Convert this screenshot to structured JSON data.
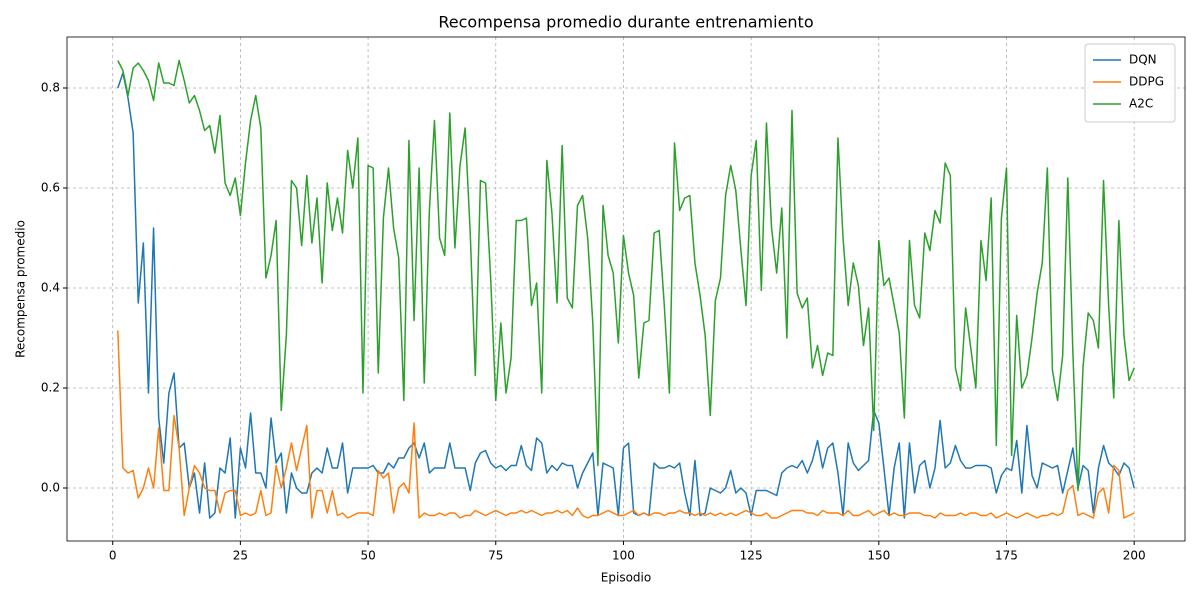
{
  "chart_data": {
    "type": "line",
    "title": "Recompensa promedio durante entrenamiento",
    "xlabel": "Episodio",
    "ylabel": "Recompensa promedio",
    "xlim": [
      -8.95,
      209.95
    ],
    "ylim": [
      -0.106,
      0.902
    ],
    "xticks": [
      0,
      25,
      50,
      75,
      100,
      125,
      150,
      175,
      200
    ],
    "yticks": [
      {
        "value": 0,
        "label": "0.0"
      },
      0.2,
      0.4,
      0.6,
      0.8
    ],
    "grid": true,
    "legend": "upper right",
    "x": [
      1,
      2,
      3,
      4,
      5,
      6,
      7,
      8,
      9,
      10,
      11,
      12,
      13,
      14,
      15,
      16,
      17,
      18,
      19,
      20,
      21,
      22,
      23,
      24,
      25,
      26,
      27,
      28,
      29,
      30,
      31,
      32,
      33,
      34,
      35,
      36,
      37,
      38,
      39,
      40,
      41,
      42,
      43,
      44,
      45,
      46,
      47,
      48,
      49,
      50,
      51,
      52,
      53,
      54,
      55,
      56,
      57,
      58,
      59,
      60,
      61,
      62,
      63,
      64,
      65,
      66,
      67,
      68,
      69,
      70,
      71,
      72,
      73,
      74,
      75,
      76,
      77,
      78,
      79,
      80,
      81,
      82,
      83,
      84,
      85,
      86,
      87,
      88,
      89,
      90,
      91,
      92,
      93,
      94,
      95,
      96,
      97,
      98,
      99,
      100,
      101,
      102,
      103,
      104,
      105,
      106,
      107,
      108,
      109,
      110,
      111,
      112,
      113,
      114,
      115,
      116,
      117,
      118,
      119,
      120,
      121,
      122,
      123,
      124,
      125,
      126,
      127,
      128,
      129,
      130,
      131,
      132,
      133,
      134,
      135,
      136,
      137,
      138,
      139,
      140,
      141,
      142,
      143,
      144,
      145,
      146,
      147,
      148,
      149,
      150,
      151,
      152,
      153,
      154,
      155,
      156,
      157,
      158,
      159,
      160,
      161,
      162,
      163,
      164,
      165,
      166,
      167,
      168,
      169,
      170,
      171,
      172,
      173,
      174,
      175,
      176,
      177,
      178,
      179,
      180,
      181,
      182,
      183,
      184,
      185,
      186,
      187,
      188,
      189,
      190,
      191,
      192,
      193,
      194,
      195,
      196,
      197,
      198,
      199,
      200
    ],
    "series": [
      {
        "name": "DQN",
        "color": "#1f77b4",
        "values": [
          0.8,
          0.83,
          0.78,
          0.71,
          0.37,
          0.49,
          0.19,
          0.52,
          0.14,
          0.05,
          0.19,
          0.23,
          0.08,
          0.09,
          0.0,
          0.03,
          -0.05,
          0.05,
          -0.06,
          -0.05,
          0.04,
          0.03,
          0.1,
          -0.06,
          0.08,
          0.04,
          0.15,
          0.03,
          0.03,
          0.0,
          0.14,
          0.05,
          0.07,
          -0.05,
          0.03,
          0.0,
          -0.01,
          -0.01,
          0.03,
          0.04,
          0.03,
          0.08,
          0.04,
          0.04,
          0.09,
          -0.01,
          0.04,
          0.04,
          0.04,
          0.04,
          0.045,
          0.03,
          0.03,
          0.05,
          0.04,
          0.06,
          0.06,
          0.08,
          0.09,
          0.06,
          0.09,
          0.03,
          0.04,
          0.04,
          0.04,
          0.09,
          0.04,
          0.04,
          0.04,
          -0.005,
          0.05,
          0.07,
          0.075,
          0.05,
          0.04,
          0.045,
          0.035,
          0.045,
          0.045,
          0.085,
          0.045,
          0.035,
          0.1,
          0.09,
          0.03,
          0.045,
          0.035,
          0.05,
          0.045,
          0.045,
          0.0,
          0.03,
          0.05,
          0.07,
          -0.055,
          0.05,
          0.045,
          0.04,
          -0.055,
          0.08,
          0.09,
          -0.05,
          -0.055,
          -0.05,
          -0.055,
          0.05,
          0.04,
          0.04,
          0.045,
          0.04,
          0.05,
          -0.01,
          -0.055,
          0.055,
          -0.055,
          -0.05,
          0.0,
          -0.005,
          -0.01,
          0.0,
          0.035,
          -0.01,
          0.0,
          -0.01,
          -0.055,
          -0.005,
          -0.005,
          -0.005,
          -0.01,
          -0.015,
          0.03,
          0.04,
          0.045,
          0.04,
          0.055,
          0.03,
          0.055,
          0.095,
          0.04,
          0.08,
          0.09,
          0.03,
          -0.055,
          0.09,
          0.05,
          0.035,
          0.045,
          0.055,
          0.155,
          0.13,
          0.04,
          -0.055,
          0.04,
          0.09,
          -0.06,
          0.09,
          -0.01,
          0.045,
          0.055,
          0.0,
          0.04,
          0.135,
          0.04,
          0.05,
          0.085,
          0.055,
          0.04,
          0.04,
          0.045,
          0.045,
          0.045,
          0.04,
          -0.01,
          0.025,
          0.04,
          0.035,
          0.095,
          -0.01,
          0.125,
          0.025,
          0.0,
          0.05,
          0.045,
          0.04,
          0.045,
          -0.01,
          0.035,
          0.08,
          0.0,
          0.045,
          0.035,
          -0.05,
          0.04,
          0.085,
          0.05,
          0.04,
          0.025,
          0.05,
          0.04,
          0.0
        ]
      },
      {
        "name": "DDPG",
        "color": "#ff7f0e",
        "values": [
          0.315,
          0.04,
          0.03,
          0.035,
          -0.02,
          0.0,
          0.04,
          0.0,
          0.12,
          -0.005,
          -0.005,
          0.145,
          0.08,
          -0.055,
          0.0,
          0.045,
          0.03,
          0.0,
          -0.005,
          -0.005,
          -0.05,
          -0.01,
          -0.005,
          -0.005,
          -0.055,
          -0.05,
          -0.055,
          -0.05,
          -0.005,
          -0.055,
          -0.05,
          0.045,
          0.0,
          0.04,
          0.09,
          0.035,
          0.08,
          0.125,
          -0.06,
          -0.005,
          -0.005,
          -0.05,
          -0.005,
          -0.055,
          -0.05,
          -0.06,
          -0.055,
          -0.05,
          -0.05,
          -0.05,
          -0.055,
          0.035,
          0.02,
          0.03,
          -0.05,
          0.0,
          0.01,
          -0.01,
          0.13,
          -0.06,
          -0.05,
          -0.055,
          -0.055,
          -0.05,
          -0.055,
          -0.05,
          -0.05,
          -0.06,
          -0.055,
          -0.055,
          -0.045,
          -0.05,
          -0.055,
          -0.05,
          -0.045,
          -0.05,
          -0.055,
          -0.05,
          -0.05,
          -0.045,
          -0.05,
          -0.045,
          -0.05,
          -0.055,
          -0.05,
          -0.05,
          -0.045,
          -0.05,
          -0.045,
          -0.055,
          -0.04,
          -0.055,
          -0.06,
          -0.055,
          -0.055,
          -0.05,
          -0.045,
          -0.05,
          -0.055,
          -0.055,
          -0.05,
          -0.045,
          -0.055,
          -0.05,
          -0.055,
          -0.05,
          -0.05,
          -0.055,
          -0.05,
          -0.05,
          -0.045,
          -0.05,
          -0.05,
          -0.055,
          -0.05,
          -0.055,
          -0.05,
          -0.055,
          -0.05,
          -0.055,
          -0.05,
          -0.055,
          -0.05,
          -0.045,
          -0.05,
          -0.055,
          -0.055,
          -0.05,
          -0.06,
          -0.06,
          -0.055,
          -0.05,
          -0.045,
          -0.045,
          -0.045,
          -0.05,
          -0.05,
          -0.055,
          -0.045,
          -0.05,
          -0.05,
          -0.05,
          -0.055,
          -0.045,
          -0.055,
          -0.055,
          -0.05,
          -0.045,
          -0.055,
          -0.05,
          -0.045,
          -0.055,
          -0.05,
          -0.055,
          -0.055,
          -0.05,
          -0.05,
          -0.05,
          -0.055,
          -0.055,
          -0.06,
          -0.05,
          -0.055,
          -0.055,
          -0.055,
          -0.05,
          -0.055,
          -0.05,
          -0.05,
          -0.055,
          -0.055,
          -0.05,
          -0.06,
          -0.055,
          -0.05,
          -0.055,
          -0.06,
          -0.055,
          -0.05,
          -0.055,
          -0.06,
          -0.055,
          -0.055,
          -0.05,
          -0.055,
          -0.05,
          -0.005,
          0.005,
          -0.055,
          -0.05,
          -0.055,
          -0.06,
          -0.01,
          0.0,
          -0.05,
          0.045,
          0.035,
          -0.06,
          -0.055,
          -0.05
        ]
      },
      {
        "name": "A2C",
        "color": "#2ca02c",
        "values": [
          0.855,
          0.835,
          0.785,
          0.84,
          0.85,
          0.835,
          0.815,
          0.775,
          0.85,
          0.81,
          0.81,
          0.805,
          0.855,
          0.815,
          0.77,
          0.785,
          0.755,
          0.715,
          0.725,
          0.67,
          0.745,
          0.61,
          0.585,
          0.62,
          0.545,
          0.65,
          0.735,
          0.785,
          0.72,
          0.42,
          0.465,
          0.535,
          0.155,
          0.305,
          0.615,
          0.6,
          0.485,
          0.625,
          0.49,
          0.58,
          0.41,
          0.61,
          0.515,
          0.58,
          0.51,
          0.675,
          0.6,
          0.7,
          0.19,
          0.645,
          0.64,
          0.23,
          0.54,
          0.64,
          0.52,
          0.46,
          0.175,
          0.695,
          0.335,
          0.64,
          0.21,
          0.555,
          0.735,
          0.5,
          0.465,
          0.75,
          0.48,
          0.645,
          0.72,
          0.51,
          0.225,
          0.615,
          0.61,
          0.42,
          0.175,
          0.33,
          0.19,
          0.26,
          0.535,
          0.535,
          0.54,
          0.365,
          0.41,
          0.19,
          0.655,
          0.55,
          0.37,
          0.685,
          0.38,
          0.36,
          0.565,
          0.585,
          0.5,
          0.33,
          0.045,
          0.565,
          0.465,
          0.43,
          0.29,
          0.505,
          0.43,
          0.385,
          0.22,
          0.33,
          0.335,
          0.51,
          0.515,
          0.365,
          0.19,
          0.69,
          0.555,
          0.58,
          0.585,
          0.45,
          0.385,
          0.305,
          0.145,
          0.375,
          0.42,
          0.585,
          0.645,
          0.595,
          0.475,
          0.365,
          0.625,
          0.695,
          0.395,
          0.73,
          0.52,
          0.43,
          0.56,
          0.3,
          0.755,
          0.39,
          0.36,
          0.38,
          0.24,
          0.285,
          0.225,
          0.27,
          0.265,
          0.7,
          0.5,
          0.365,
          0.45,
          0.405,
          0.285,
          0.36,
          0.115,
          0.495,
          0.405,
          0.42,
          0.365,
          0.31,
          0.14,
          0.495,
          0.365,
          0.34,
          0.51,
          0.475,
          0.555,
          0.53,
          0.65,
          0.625,
          0.24,
          0.195,
          0.36,
          0.28,
          0.2,
          0.495,
          0.415,
          0.58,
          0.085,
          0.54,
          0.64,
          0.065,
          0.345,
          0.2,
          0.225,
          0.3,
          0.39,
          0.45,
          0.64,
          0.235,
          0.175,
          0.265,
          0.62,
          0.27,
          -0.005,
          0.245,
          0.35,
          0.335,
          0.28,
          0.615,
          0.365,
          0.18,
          0.535,
          0.305,
          0.215,
          0.24
        ]
      }
    ]
  }
}
